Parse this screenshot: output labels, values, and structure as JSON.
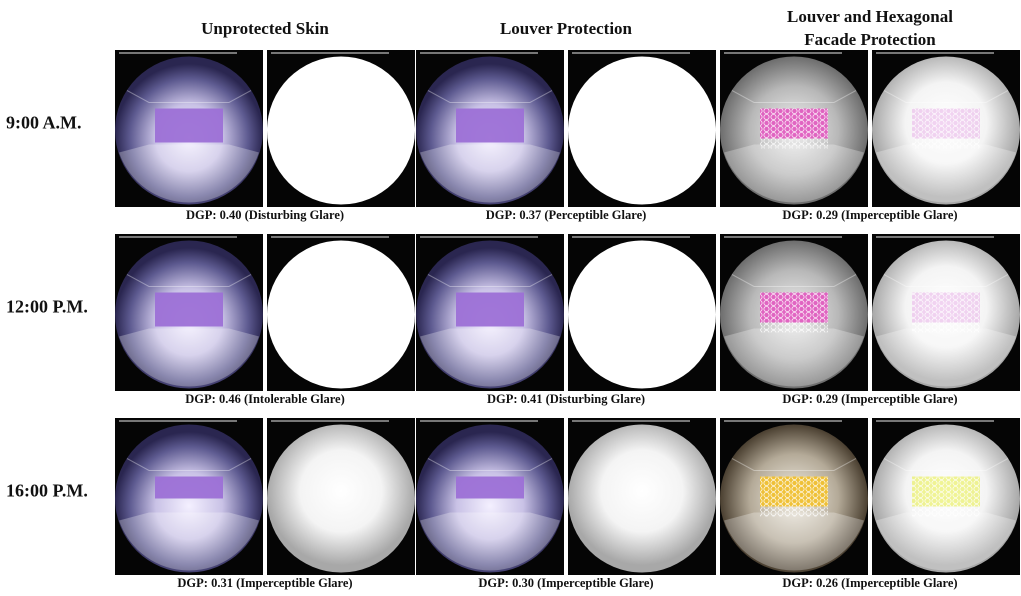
{
  "columns": [
    {
      "title_lines": [
        "Unprotected Skin"
      ]
    },
    {
      "title_lines": [
        "Louver Protection"
      ]
    },
    {
      "title_lines": [
        "Louver and Hexagonal",
        "Facade Protection"
      ]
    }
  ],
  "rows": [
    {
      "label": "9:00 A.M.",
      "captions": [
        "DGP: 0.40 (Disturbing Glare)",
        "DGP: 0.37 (Perceptible Glare)",
        "DGP: 0.29 (Imperceptible Glare)"
      ]
    },
    {
      "label": "12:00 P.M.",
      "captions": [
        "DGP: 0.46 (Intolerable Glare)",
        "DGP: 0.41 (Disturbing Glare)",
        "DGP: 0.29 (Imperceptible Glare)"
      ]
    },
    {
      "label": "16:00 P.M.",
      "captions": [
        "DGP: 0.31 (Imperceptible Glare)",
        "DGP: 0.30 (Imperceptible Glare)",
        "DGP: 0.26 (Imperceptible Glare)"
      ]
    }
  ]
}
